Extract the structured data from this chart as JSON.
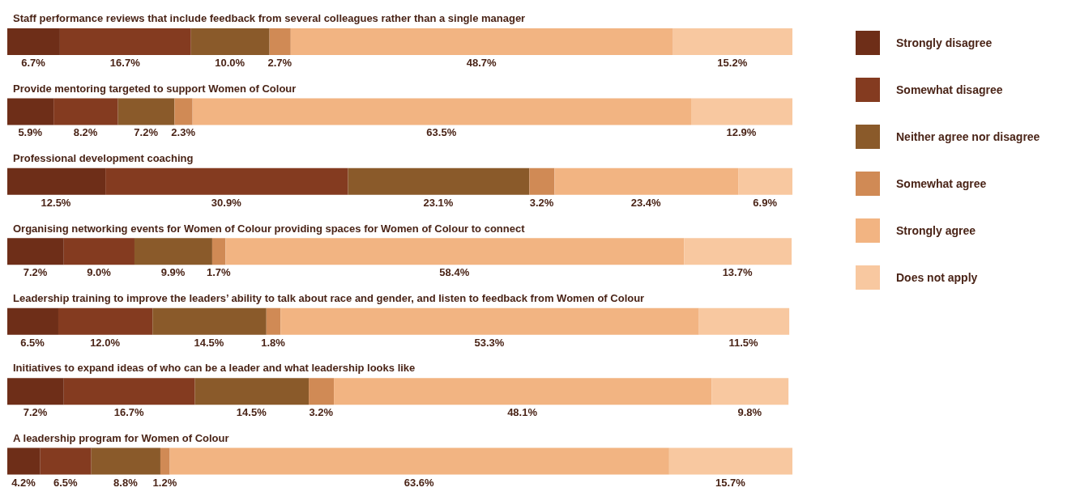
{
  "chart_data": {
    "type": "bar",
    "orientation": "horizontal",
    "stacked": true,
    "legend": "right",
    "grid": false,
    "categories": [
      "Staff performance reviews that include feedback from several colleagues rather than a single manager",
      "Provide mentoring targeted to support Women of Colour",
      "Professional development coaching",
      "Organising networking events for Women of Colour providing spaces for Women of Colour to connect",
      "Leadership training to improve the leaders’ ability to talk about race and gender, and listen to feedback from Women of Colour",
      "Initiatives to expand ideas of who can be a leader and what leadership looks like",
      "A leadership program for Women of Colour"
    ],
    "series": [
      {
        "name": "Strongly disagree",
        "color": "#6e2e18",
        "values": [
          6.7,
          5.9,
          12.5,
          7.2,
          6.5,
          7.2,
          4.2
        ],
        "value_labels": [
          "6.7%",
          "5.9%",
          "12.5%",
          "7.2%",
          "6.5%",
          "7.2%",
          "4.2%"
        ]
      },
      {
        "name": "Somewhat disagree",
        "color": "#843b20",
        "values": [
          16.7,
          8.2,
          30.9,
          9.0,
          12.0,
          16.7,
          6.5
        ],
        "value_labels": [
          "16.7%",
          "8.2%",
          "30.9%",
          "9.0%",
          "12.0%",
          "16.7%",
          "6.5%"
        ]
      },
      {
        "name": "Neither agree nor disagree",
        "color": "#8a5a2a",
        "values": [
          10.0,
          7.2,
          23.1,
          9.9,
          14.5,
          14.5,
          8.8
        ],
        "value_labels": [
          "10.0%",
          "7.2%",
          "23.1%",
          "9.9%",
          "14.5%",
          "14.5%",
          "8.8%"
        ]
      },
      {
        "name": "Somewhat agree",
        "color": "#d08a55",
        "values": [
          2.7,
          2.3,
          3.2,
          1.7,
          1.8,
          3.2,
          1.2
        ],
        "value_labels": [
          "2.7%",
          "2.3%",
          "3.2%",
          "1.7%",
          "1.8%",
          "3.2%",
          "1.2%"
        ]
      },
      {
        "name": "Strongly agree",
        "color": "#f2b482",
        "values": [
          48.7,
          63.5,
          23.4,
          58.4,
          53.3,
          48.1,
          63.6
        ],
        "value_labels": [
          "48.7%",
          "63.5%",
          "23.4%",
          "58.4%",
          "53.3%",
          "48.1%",
          "63.6%"
        ]
      },
      {
        "name": "Does not apply",
        "color": "#f8c8a0",
        "values": [
          15.2,
          12.9,
          6.9,
          13.7,
          11.5,
          9.8,
          15.7
        ],
        "value_labels": [
          "15.2%",
          "12.9%",
          "6.9%",
          "13.7%",
          "11.5%",
          "9.8%",
          "15.7%"
        ]
      }
    ]
  }
}
